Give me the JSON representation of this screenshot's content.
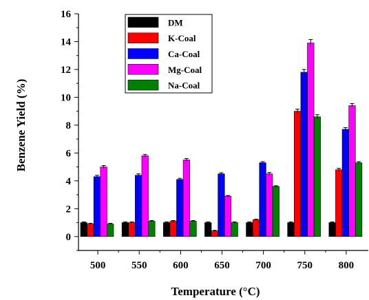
{
  "chart_data": {
    "type": "bar",
    "xlabel": "Temperature (°C)",
    "ylabel": "Benzene Yield (%)",
    "ylim": [
      -1,
      16
    ],
    "yticks": [
      "0",
      "2",
      "4",
      "6",
      "8",
      "10",
      "12",
      "14",
      "16"
    ],
    "categories": [
      "500",
      "550",
      "600",
      "650",
      "700",
      "750",
      "800"
    ],
    "legend_position": "top-left",
    "series": [
      {
        "name": "DM",
        "color": "#000000",
        "values": [
          1.0,
          1.0,
          1.0,
          1.0,
          1.0,
          1.0,
          1.0
        ],
        "errors": [
          0.05,
          0.05,
          0.05,
          0.05,
          0.05,
          0.05,
          0.05
        ]
      },
      {
        "name": "K-Coal",
        "color": "#ff0000",
        "values": [
          0.9,
          1.0,
          1.1,
          0.4,
          1.2,
          9.0,
          4.8
        ],
        "errors": [
          0.05,
          0.05,
          0.05,
          0.05,
          0.05,
          0.15,
          0.1
        ]
      },
      {
        "name": "Ca-Coal",
        "color": "#0000ff",
        "values": [
          4.3,
          4.4,
          4.1,
          4.5,
          5.3,
          11.8,
          7.7
        ],
        "errors": [
          0.1,
          0.1,
          0.08,
          0.08,
          0.08,
          0.2,
          0.12
        ]
      },
      {
        "name": "Mg-Coal",
        "color": "#ff00ff",
        "values": [
          5.0,
          5.8,
          5.5,
          2.9,
          4.5,
          13.9,
          9.4
        ],
        "errors": [
          0.1,
          0.1,
          0.1,
          0.05,
          0.1,
          0.25,
          0.15
        ]
      },
      {
        "name": "Na-Coal",
        "color": "#008000",
        "values": [
          0.9,
          1.1,
          1.1,
          1.0,
          3.6,
          8.6,
          5.3
        ],
        "errors": [
          0.05,
          0.05,
          0.05,
          0.05,
          0.05,
          0.15,
          0.08
        ]
      }
    ]
  }
}
